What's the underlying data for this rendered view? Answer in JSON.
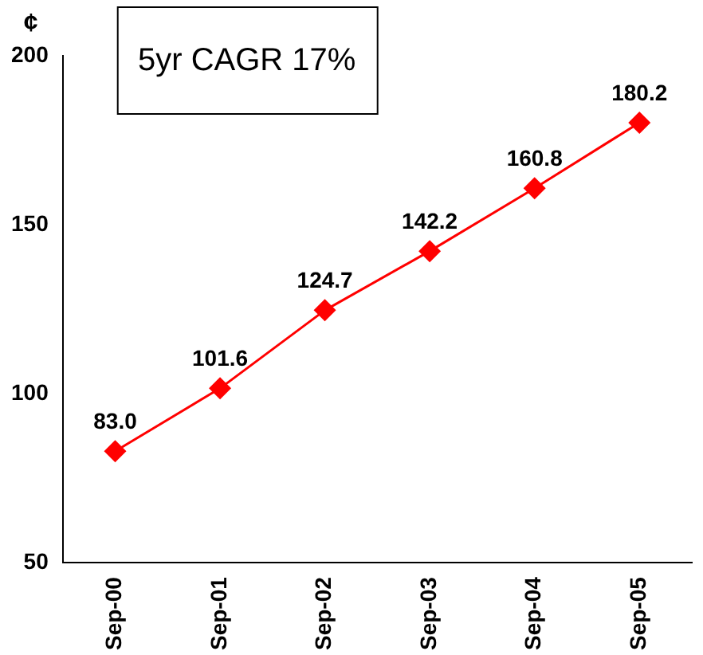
{
  "chart_data": {
    "type": "line",
    "ylabel": "¢",
    "annotations": [
      "5yr CAGR 17%"
    ],
    "categories": [
      "Sep-00",
      "Sep-01",
      "Sep-02",
      "Sep-03",
      "Sep-04",
      "Sep-05"
    ],
    "series": [
      {
        "color": "#ff0000",
        "values": [
          83.0,
          101.6,
          124.7,
          142.2,
          160.8,
          180.2
        ],
        "value_labels": [
          "83.0",
          "101.6",
          "124.7",
          "142.2",
          "160.8",
          "180.2"
        ]
      }
    ],
    "ylim": [
      50,
      200
    ],
    "yticks": [
      50,
      100,
      150,
      200
    ],
    "grid": false,
    "legend": false,
    "marker": "diamond",
    "line_style": "solid"
  }
}
